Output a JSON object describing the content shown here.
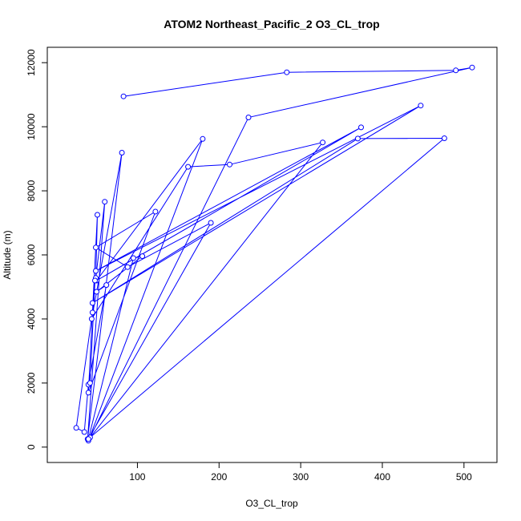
{
  "chart_data": {
    "type": "line",
    "title": "ATOM2 Northeast_Pacific_2 O3_CL_trop",
    "xlabel": "O3_CL_trop",
    "ylabel": "Altitude (m)",
    "xlim": [
      10,
      520
    ],
    "ylim": [
      0,
      12000
    ],
    "x_ticks": [
      100,
      200,
      300,
      400,
      500
    ],
    "y_ticks": [
      0,
      2000,
      4000,
      6000,
      8000,
      10000,
      12000
    ],
    "series_color": "#0000ff",
    "marker": "open-circle",
    "grid": false,
    "series": [
      {
        "points": [
          [
            83,
            10950
          ],
          [
            283,
            11700
          ],
          [
            490,
            11760
          ],
          [
            510,
            11850
          ],
          [
            236,
            10290
          ],
          [
            40,
            200
          ],
          [
            180,
            9620
          ],
          [
            50,
            5200
          ],
          [
            374,
            9980
          ],
          [
            49,
            5500
          ],
          [
            447,
            10660
          ],
          [
            45,
            4500
          ],
          [
            370,
            9630
          ],
          [
            476,
            9640
          ],
          [
            42,
            300
          ],
          [
            327,
            9510
          ],
          [
            213,
            8820
          ],
          [
            162,
            8750
          ],
          [
            44,
            4000
          ],
          [
            81,
            9190
          ],
          [
            39,
            250
          ],
          [
            60,
            7660
          ],
          [
            49,
            5280
          ],
          [
            51,
            7250
          ],
          [
            40,
            1700
          ],
          [
            122,
            7350
          ],
          [
            49,
            6230
          ],
          [
            88,
            5620
          ],
          [
            190,
            7000
          ],
          [
            40,
            250
          ],
          [
            95,
            5900
          ],
          [
            106,
            5960
          ],
          [
            50,
            4850
          ],
          [
            62,
            5060
          ],
          [
            40,
            1950
          ],
          [
            35,
            470
          ],
          [
            25,
            600
          ],
          [
            45,
            4200
          ],
          [
            48,
            5200
          ],
          [
            42,
            2000
          ]
        ]
      }
    ]
  }
}
